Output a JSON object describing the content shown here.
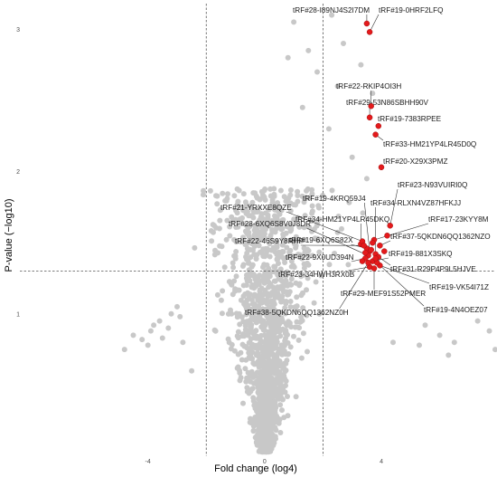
{
  "chart_data": {
    "type": "scatter",
    "title": "",
    "xlabel": "Fold change (log4)",
    "ylabel": "P-value (−log10)",
    "xlim": [
      -8.2,
      7.9
    ],
    "ylim": [
      0.0,
      3.18
    ],
    "xticks": [
      -4,
      0,
      4
    ],
    "yticks": [
      1,
      2,
      3
    ],
    "grid": false,
    "legend": "none",
    "thresholds": {
      "x": [
        -2,
        2
      ],
      "y": 1.3
    },
    "colors": {
      "background": "#ffffff",
      "nonsig": "#c8c8c8",
      "sig": "#e41a1c",
      "threshold_line": "#555555",
      "label_line": "#333333"
    },
    "background_points": {
      "description_free_generator": true,
      "count": 1500,
      "seed": 7
    },
    "outliers": [
      [
        -4.8,
        0.75
      ],
      [
        -4.2,
        0.82
      ],
      [
        -3.9,
        0.88
      ],
      [
        -3.6,
        0.95
      ],
      [
        -3.3,
        0.9
      ],
      [
        -4.0,
        0.78
      ],
      [
        -3.0,
        1.05
      ],
      [
        -2.9,
        0.98
      ],
      [
        -4.5,
        0.85
      ],
      [
        -3.5,
        0.83
      ],
      [
        -3.8,
        0.92
      ],
      [
        -3.2,
        1.0
      ],
      [
        -2.5,
        0.6
      ],
      [
        -2.8,
        0.8
      ],
      [
        5.3,
        0.78
      ],
      [
        6.5,
        0.8
      ],
      [
        7.3,
        0.95
      ],
      [
        7.7,
        0.88
      ],
      [
        6.0,
        0.85
      ],
      [
        5.5,
        0.92
      ],
      [
        4.4,
        0.8
      ],
      [
        7.9,
        0.75
      ],
      [
        6.3,
        0.71
      ],
      [
        3.5,
        1.95
      ],
      [
        3.0,
        2.1
      ],
      [
        2.7,
        2.9
      ],
      [
        1.8,
        2.7
      ],
      [
        2.5,
        2.6
      ],
      [
        3.7,
        2.55
      ],
      [
        1.0,
        3.05
      ],
      [
        1.5,
        2.85
      ],
      [
        0.8,
        2.8
      ],
      [
        2.2,
        2.3
      ],
      [
        1.3,
        2.45
      ],
      [
        3.3,
        2.75
      ],
      [
        2.3,
        3.1
      ]
    ],
    "sig_points": [
      {
        "x": 3.5,
        "y": 3.04,
        "label": "tRF#28-I89NJ4S2I7DM"
      },
      {
        "x": 3.6,
        "y": 2.98,
        "label": "tRF#19-0HRF2LFQ"
      },
      {
        "x": 3.65,
        "y": 2.46,
        "label": "tRF#22-RKIP4OI3H"
      },
      {
        "x": 3.6,
        "y": 2.38,
        "label": "tRF#29-53N86SBHH90V"
      },
      {
        "x": 3.9,
        "y": 2.32,
        "label": "tRF#19-7383RPEE"
      },
      {
        "x": 3.8,
        "y": 2.26,
        "label": "tRF#33-HM21YP4LR45D0Q"
      },
      {
        "x": 4.0,
        "y": 2.03,
        "label": "tRF#20-X29X3PMZ"
      },
      {
        "x": 4.3,
        "y": 1.62,
        "label": "tRF#23-N93VUIRI0Q"
      },
      {
        "x": 3.6,
        "y": 1.44,
        "label": "tRF#19-4KRQ59J4"
      },
      {
        "x": 3.8,
        "y": 1.42,
        "label": "tRF#34-RLXN4VZ87HFKJJ"
      },
      {
        "x": 3.3,
        "y": 1.49,
        "label": "tRF#34-HM21YP4LR45DKQ"
      },
      {
        "x": 3.75,
        "y": 1.52,
        "label": "tRF#17-23KYY8M"
      },
      {
        "x": 3.35,
        "y": 1.51,
        "label": "tRF#21-YRXXE8QZE"
      },
      {
        "x": 3.5,
        "y": 1.46,
        "label": "tRF#19-6XQ6S82X"
      },
      {
        "x": 3.55,
        "y": 1.41,
        "label": "tRF#28-6XQ6S8V0J8DR"
      },
      {
        "x": 3.95,
        "y": 1.48,
        "label": "tRF#37-5QKDN6QQ1362NZO"
      },
      {
        "x": 3.4,
        "y": 1.48,
        "label": "tRF#22-46S9Y8RHP"
      },
      {
        "x": 3.7,
        "y": 1.37,
        "label": "tRF#19-881X3SKQ"
      },
      {
        "x": 3.45,
        "y": 1.39,
        "label": "tRF#22-9X0UD394N"
      },
      {
        "x": 3.9,
        "y": 1.4,
        "label": "tRF#31-R29P4P9L5HJVE"
      },
      {
        "x": 3.6,
        "y": 1.33,
        "label": "tRF#23-34HWH3RX0B"
      },
      {
        "x": 3.95,
        "y": 1.34,
        "label": "tRF#19-VK54I71Z"
      },
      {
        "x": 3.75,
        "y": 1.32,
        "label": "tRF#29-MEF91S52PMER"
      },
      {
        "x": 3.85,
        "y": 1.36,
        "label": "tRF#19-4N4OEZ07"
      },
      {
        "x": 3.55,
        "y": 1.36,
        "label": "tRF#38-5QKDN6QQ1362NZ0H"
      },
      {
        "x": 3.65,
        "y": 1.45,
        "label": ""
      },
      {
        "x": 3.45,
        "y": 1.43,
        "label": ""
      },
      {
        "x": 3.35,
        "y": 1.37,
        "label": ""
      },
      {
        "x": 3.8,
        "y": 1.39,
        "label": ""
      },
      {
        "x": 3.7,
        "y": 1.5,
        "label": ""
      },
      {
        "x": 4.1,
        "y": 1.44,
        "label": ""
      },
      {
        "x": 4.2,
        "y": 1.55,
        "label": ""
      }
    ]
  }
}
